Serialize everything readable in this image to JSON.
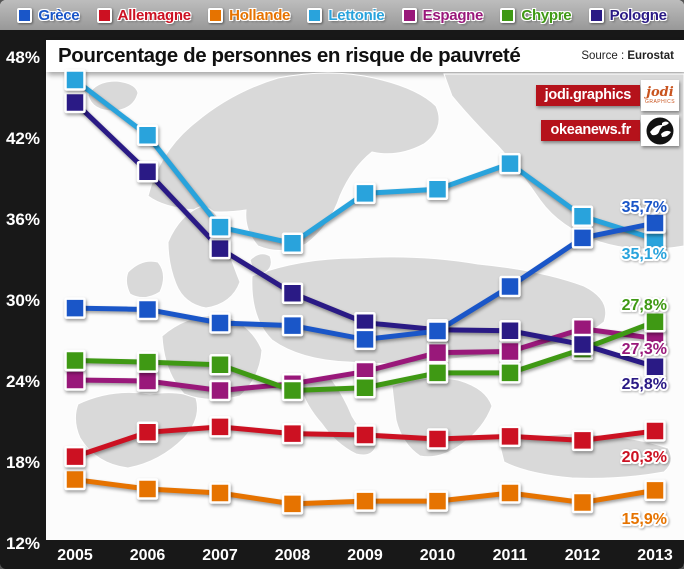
{
  "header": {
    "title": "Pourcentage de personnes en risque de pauvreté",
    "source_label": "Source :",
    "source_value": "Eurostat"
  },
  "badges": {
    "jodi": {
      "label": "jodi.graphics",
      "logo_text": "jodi",
      "logo_sub": "graphics"
    },
    "okeanews": {
      "label": "okeanews.fr",
      "logo": "dove-circle-icon"
    }
  },
  "colors": {
    "frame_strip": "#181818",
    "legend_bar": "#a8a8a8",
    "badge_red": "#b5121b",
    "map_land": "#d9d9d9",
    "panel": "#fcfcfc"
  },
  "chart_data": {
    "type": "line",
    "title": "Pourcentage de personnes en risque de pauvreté",
    "x": [
      2005,
      2006,
      2007,
      2008,
      2009,
      2010,
      2011,
      2012,
      2013
    ],
    "x_labels": [
      "2005",
      "2006",
      "2007",
      "2008",
      "2009",
      "2010",
      "2011",
      "2012",
      "2013"
    ],
    "y_tick_labels": [
      "48%",
      "42%",
      "36%",
      "30%",
      "24%",
      "18%",
      "12%"
    ],
    "ylim": [
      12,
      48
    ],
    "ylabel": "",
    "xlabel": "",
    "grid": false,
    "legend_position": "top",
    "series": [
      {
        "name": "Grèce",
        "color": "#1a56c8",
        "values": [
          29.4,
          29.3,
          28.3,
          28.1,
          27.6,
          27.7,
          31.0,
          34.6,
          35.7
        ],
        "end_label": "35,7%"
      },
      {
        "name": "Allemagne",
        "color": "#cc1122",
        "values": [
          18.4,
          20.2,
          20.6,
          20.1,
          20.0,
          19.7,
          19.9,
          19.6,
          20.3
        ],
        "end_label": "20,3%"
      },
      {
        "name": "Hollande",
        "color": "#e67300",
        "values": [
          16.7,
          16.0,
          15.7,
          14.9,
          15.1,
          15.1,
          15.7,
          15.0,
          15.9
        ],
        "end_label": "15,9%"
      },
      {
        "name": "Lettonie",
        "color": "#29a3dc",
        "values": [
          46.3,
          42.2,
          35.1,
          34.2,
          37.9,
          38.2,
          40.1,
          36.2,
          35.1
        ],
        "end_label": "35,1%"
      },
      {
        "name": "Espagne",
        "color": "#99187a",
        "values": [
          24.3,
          24.0,
          23.3,
          23.8,
          24.7,
          26.1,
          26.7,
          27.2,
          27.3
        ],
        "end_label": "27,3%"
      },
      {
        "name": "Chypre",
        "color": "#3f9914",
        "values": [
          25.3,
          25.4,
          25.2,
          23.3,
          23.5,
          24.6,
          24.6,
          27.1,
          27.8
        ],
        "end_label": "27,8%"
      },
      {
        "name": "Pologne",
        "color": "#2a1a85",
        "values": [
          45.3,
          39.5,
          34.4,
          30.5,
          27.8,
          27.8,
          27.2,
          26.7,
          25.8
        ],
        "end_label": "25,8%"
      }
    ]
  }
}
